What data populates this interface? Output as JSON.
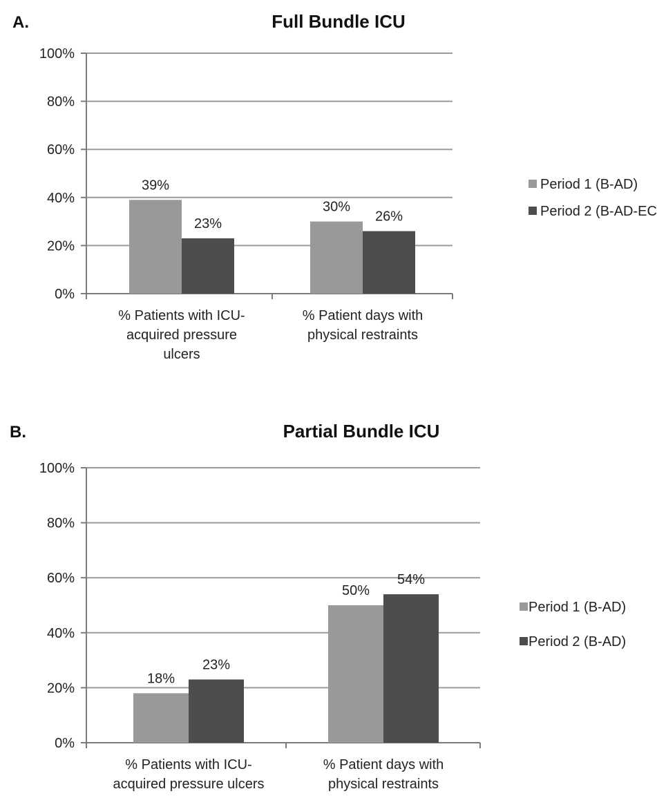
{
  "chart_data": [
    {
      "type": "bar",
      "panel": "A.",
      "title": "Full Bundle ICU",
      "categories": [
        [
          "% Patients with ICU-",
          "acquired pressure",
          "ulcers"
        ],
        [
          "% Patient days with",
          "physical restraints"
        ]
      ],
      "series": [
        {
          "name": "Period 1 (B-AD)",
          "values": [
            39,
            30
          ],
          "labels": [
            "39%",
            "30%"
          ],
          "color": "#999999"
        },
        {
          "name": "Period 2 (B-AD-EC)",
          "values": [
            23,
            26
          ],
          "labels": [
            "23%",
            "26%"
          ],
          "color": "#4d4d4d"
        }
      ],
      "ylim": [
        0,
        100
      ],
      "yticks": [
        "0%",
        "20%",
        "40%",
        "60%",
        "80%",
        "100%"
      ],
      "grid": true,
      "legend": "right"
    },
    {
      "type": "bar",
      "panel": "B.",
      "title": "Partial Bundle ICU",
      "categories": [
        [
          "% Patients with ICU-",
          "acquired pressure ulcers"
        ],
        [
          "% Patient days with",
          "physical restraints"
        ]
      ],
      "series": [
        {
          "name": "Period 1 (B-AD)",
          "values": [
            18,
            50
          ],
          "labels": [
            "18%",
            "50%"
          ],
          "color": "#999999"
        },
        {
          "name": "Period 2 (B-AD)",
          "values": [
            23,
            54
          ],
          "labels": [
            "23%",
            "54%"
          ],
          "color": "#4d4d4d"
        }
      ],
      "ylim": [
        0,
        100
      ],
      "yticks": [
        "0%",
        "20%",
        "40%",
        "60%",
        "80%",
        "100%"
      ],
      "grid": true,
      "legend": "right"
    }
  ]
}
